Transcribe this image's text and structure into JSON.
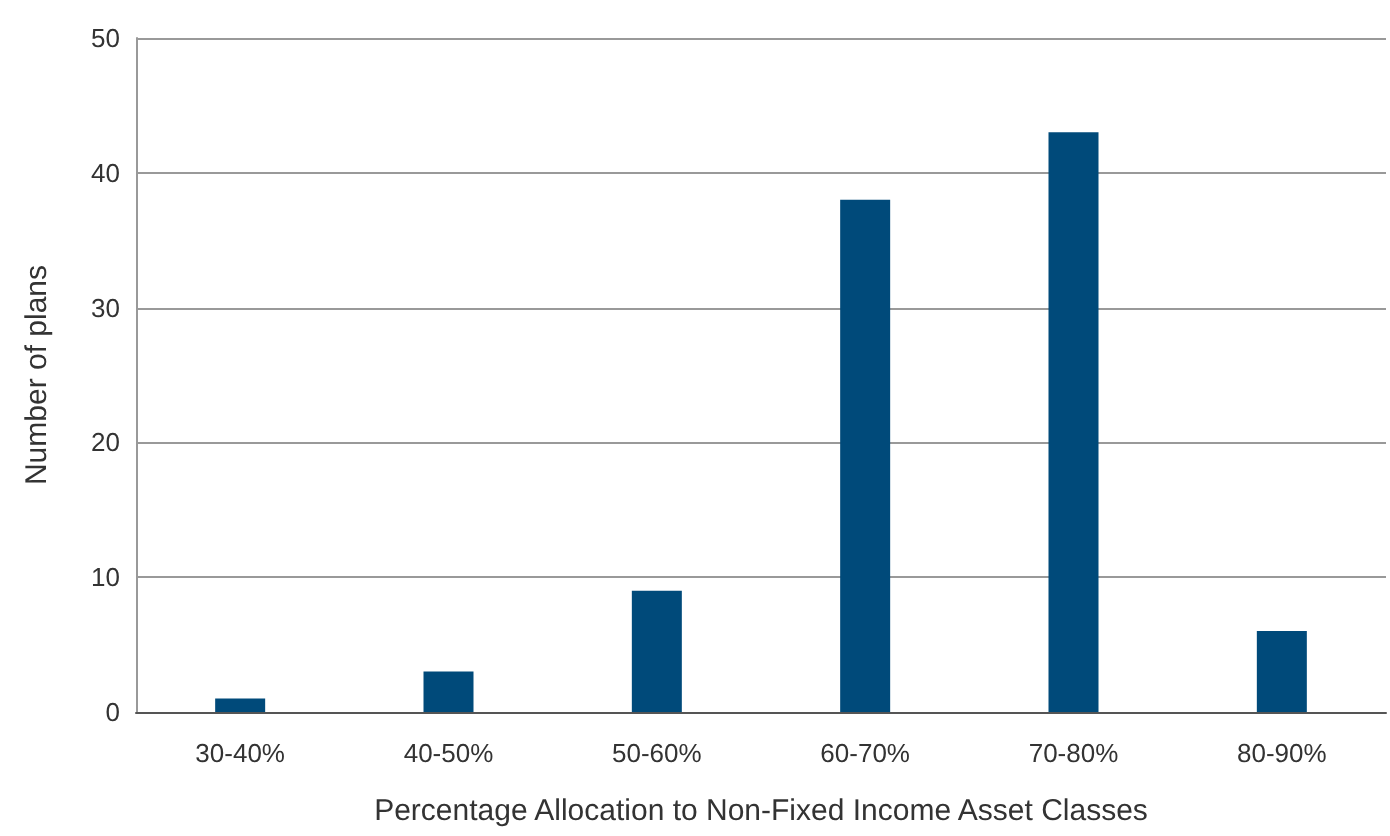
{
  "chart_data": {
    "type": "bar",
    "xlabel": "Percentage Allocation to Non-Fixed Income Asset Classes",
    "ylabel": "Number of plans",
    "categories": [
      "30-40%",
      "40-50%",
      "50-60%",
      "60-70%",
      "70-80%",
      "80-90%"
    ],
    "values": [
      1,
      3,
      9,
      38,
      43,
      6
    ],
    "color": "#004a7a",
    "ylim": [
      0,
      50
    ],
    "yticks": [
      0,
      10,
      20,
      30,
      40,
      50
    ],
    "grid": "y"
  }
}
